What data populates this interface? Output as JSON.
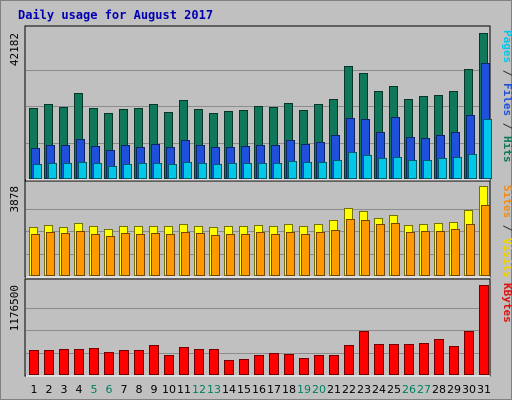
{
  "chart_data": {
    "type": "bar",
    "title": "Daily usage for August 2017",
    "categories": [
      "1",
      "2",
      "3",
      "4",
      "5",
      "6",
      "7",
      "8",
      "9",
      "10",
      "11",
      "12",
      "13",
      "14",
      "15",
      "16",
      "17",
      "18",
      "19",
      "20",
      "21",
      "22",
      "23",
      "24",
      "25",
      "26",
      "27",
      "28",
      "29",
      "30",
      "31"
    ],
    "weekend_days": [
      "5",
      "6",
      "12",
      "13",
      "19",
      "20",
      "26",
      "27"
    ],
    "panels": [
      {
        "id": "hits-panel",
        "max_label": "42182",
        "ymax": 42182,
        "right_labels": [
          {
            "text": "Pages",
            "color": "#00c8e8"
          },
          {
            "text": " / ",
            "color": "#333333"
          },
          {
            "text": "Files",
            "color": "#1e50dc"
          },
          {
            "text": " / ",
            "color": "#333333"
          },
          {
            "text": "Hits",
            "color": "#10785a"
          }
        ],
        "series": [
          {
            "name": "Hits",
            "color": "#10785a",
            "values": [
              20600,
              21700,
              20900,
              24800,
              20400,
              19100,
              20200,
              20600,
              21700,
              19500,
              22900,
              20300,
              19100,
              19600,
              20000,
              21000,
              20900,
              22100,
              20000,
              21700,
              23000,
              32700,
              30600,
              25300,
              26800,
              23100,
              24000,
              24400,
              25400,
              31700,
              42182
            ]
          },
          {
            "name": "Files",
            "color": "#1e50dc",
            "values": [
              8900,
              9900,
              9800,
              11700,
              9600,
              8400,
              9700,
              9300,
              10000,
              9200,
              11200,
              9800,
              9200,
              9300,
              9500,
              9800,
              9900,
              11300,
              10000,
              10800,
              12700,
              17600,
              17400,
              13700,
              17800,
              12100,
              11900,
              12700,
              13600,
              18600,
              33600
            ]
          },
          {
            "name": "Pages",
            "color": "#00c8e8",
            "values": [
              4300,
              4700,
              4700,
              5000,
              4500,
              3700,
              4400,
              4500,
              4600,
              4300,
              4800,
              4500,
              4300,
              4500,
              4500,
              4700,
              4500,
              5200,
              4800,
              4800,
              5500,
              7800,
              6800,
              6200,
              6300,
              5500,
              5400,
              6000,
              6500,
              7200,
              17400
            ]
          }
        ]
      },
      {
        "id": "visits-panel",
        "max_label": "3878",
        "ymax": 3878,
        "right_labels": [
          {
            "text": "Sites",
            "color": "#f08c14"
          },
          {
            "text": " / ",
            "color": "#333333"
          },
          {
            "text": "Visits",
            "color": "#f0d000"
          }
        ],
        "series": [
          {
            "name": "Visits",
            "color": "#ffff00",
            "values": [
              2120,
              2200,
              2100,
              2300,
              2150,
              2020,
              2150,
              2150,
              2170,
              2150,
              2250,
              2170,
              2100,
              2150,
              2170,
              2200,
              2150,
              2220,
              2150,
              2230,
              2400,
              2940,
              2780,
              2520,
              2640,
              2200,
              2250,
              2300,
              2320,
              2830,
              3878
            ]
          },
          {
            "name": "Sites",
            "color": "#ff9900",
            "values": [
              1800,
              1900,
              1850,
              1930,
              1830,
              1740,
              1840,
              1820,
              1870,
              1800,
              1900,
              1850,
              1760,
              1820,
              1830,
              1880,
              1830,
              1910,
              1830,
              1900,
              1970,
              2450,
              2420,
              2250,
              2270,
              1890,
              1920,
              1950,
              2040,
              2230,
              3070
            ]
          }
        ]
      },
      {
        "id": "kbytes-panel",
        "max_label": "1176500",
        "ymax": 1176500,
        "right_labels": [
          {
            "text": "KBytes",
            "color": "#e01010"
          }
        ],
        "series": [
          {
            "name": "KBytes",
            "color": "#ff0000",
            "values": [
              325000,
              328000,
              335000,
              340000,
              355000,
              300000,
              330000,
              330000,
              395000,
              260000,
              370000,
              340000,
              340000,
              200000,
              215000,
              255000,
              290000,
              280000,
              220000,
              265000,
              265000,
              390000,
              580000,
              400000,
              400000,
              400000,
              420000,
              475000,
              380000,
              580000,
              1176500
            ]
          }
        ]
      }
    ]
  },
  "colors": {
    "outer_bg": "#c0c0c0",
    "panel_bg": "#c0c0c0",
    "title_color": "#0000b0",
    "axis_day_normal": "#000000",
    "axis_day_weekend": "#008060",
    "grid_line": "#8c8c8c"
  }
}
